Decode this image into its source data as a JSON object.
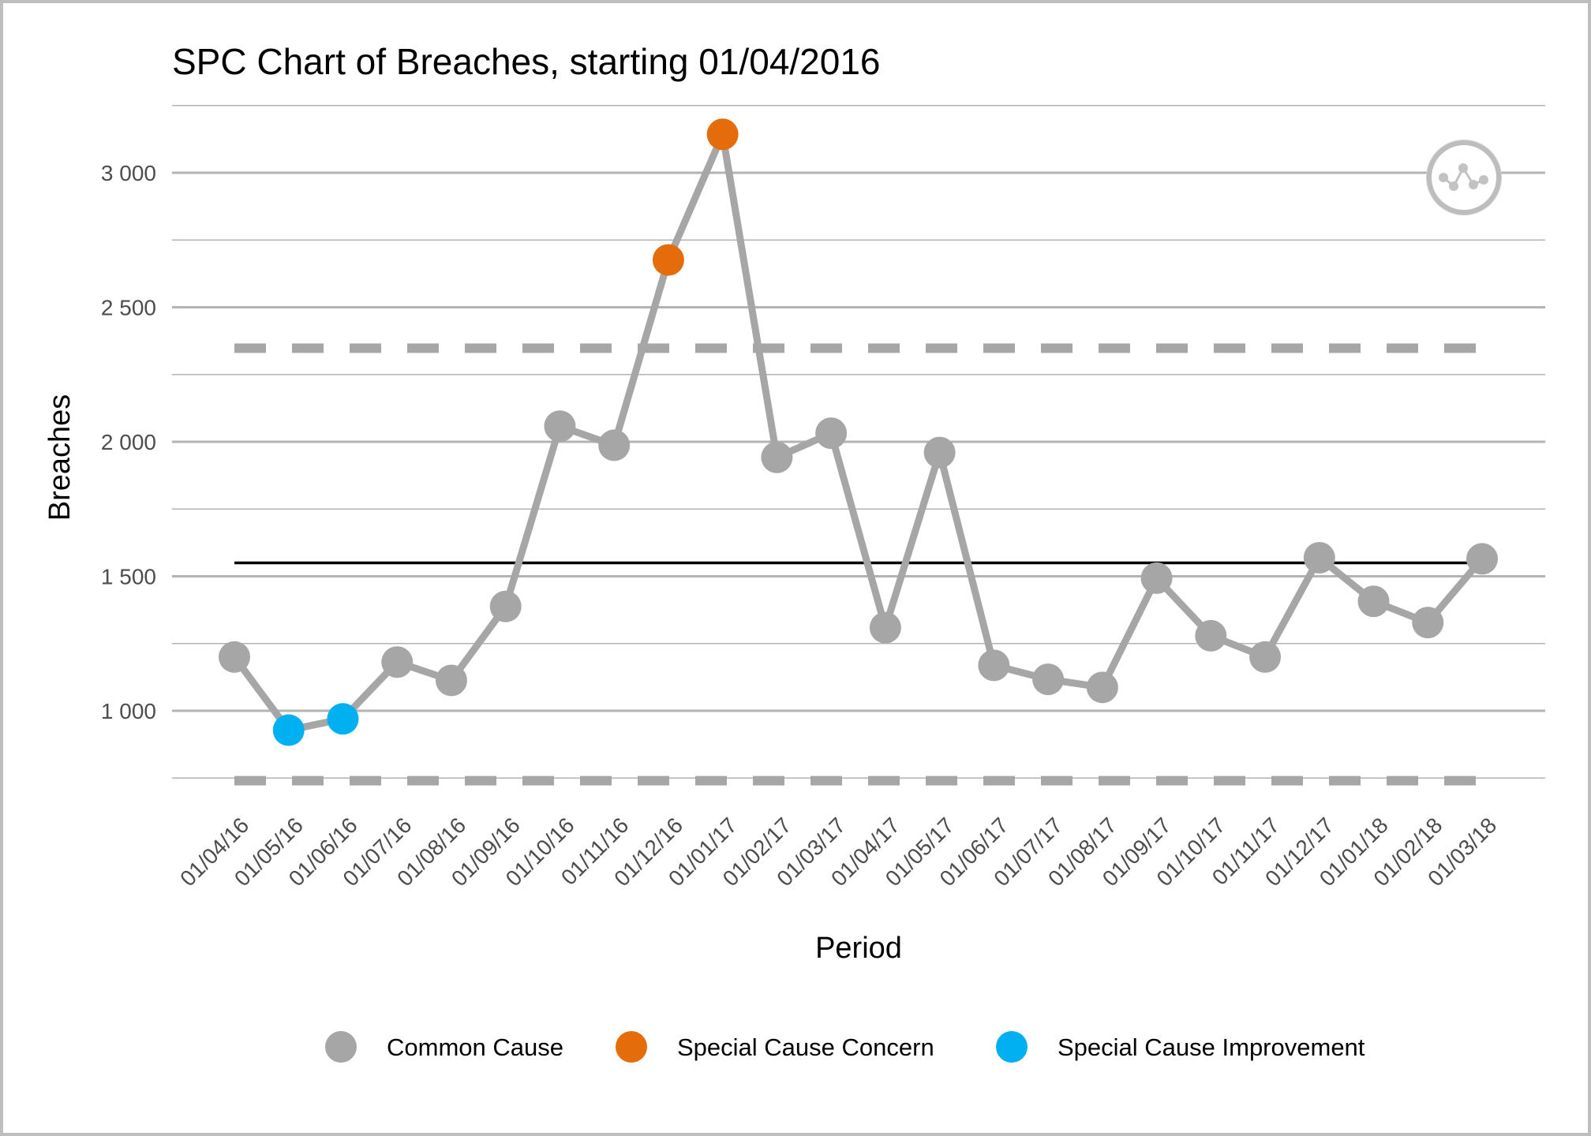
{
  "chart_data": {
    "type": "line",
    "title": "SPC Chart of Breaches, starting 01/04/2016",
    "xlabel": "Period",
    "ylabel": "Breaches",
    "ylim": [
      720,
      3290
    ],
    "yticks": [
      1000,
      1500,
      2000,
      2500,
      3000
    ],
    "ytick_labels": [
      "1 000",
      "1 500",
      "2 000",
      "2 500",
      "3 000"
    ],
    "grid": true,
    "categories": [
      "01/04/16",
      "01/05/16",
      "01/06/16",
      "01/07/16",
      "01/08/16",
      "01/09/16",
      "01/10/16",
      "01/11/16",
      "01/12/16",
      "01/01/17",
      "01/02/17",
      "01/03/17",
      "01/04/17",
      "01/05/17",
      "01/06/17",
      "01/07/17",
      "01/08/17",
      "01/09/17",
      "01/10/17",
      "01/11/17",
      "01/12/17",
      "01/01/18",
      "01/02/18",
      "01/03/18"
    ],
    "values": [
      1200,
      928,
      970,
      1181,
      1113,
      1388,
      2058,
      1987,
      2676,
      3143,
      1942,
      2032,
      1309,
      1960,
      1169,
      1117,
      1087,
      1493,
      1279,
      1200,
      1569,
      1407,
      1328,
      1565
    ],
    "point_class": [
      "common",
      "improvement",
      "improvement",
      "common",
      "common",
      "common",
      "common",
      "common",
      "concern",
      "concern",
      "common",
      "common",
      "common",
      "common",
      "common",
      "common",
      "common",
      "common",
      "common",
      "common",
      "common",
      "common",
      "common",
      "common"
    ],
    "mean": 1550,
    "ucl": 2348,
    "lcl": 740,
    "legend_position": "bottom",
    "legend": [
      {
        "key": "common",
        "label": "Common Cause",
        "color": "#a6a6a6"
      },
      {
        "key": "concern",
        "label": "Special Cause Concern",
        "color": "#e46c0a"
      },
      {
        "key": "improvement",
        "label": "Special Cause Improvement",
        "color": "#00b0f0"
      }
    ],
    "colors": {
      "line": "#a6a6a6",
      "mean": "#000000",
      "limits": "#a6a6a6",
      "grid": "#b3b3b3"
    },
    "icon": "common-cause-variation-icon"
  }
}
